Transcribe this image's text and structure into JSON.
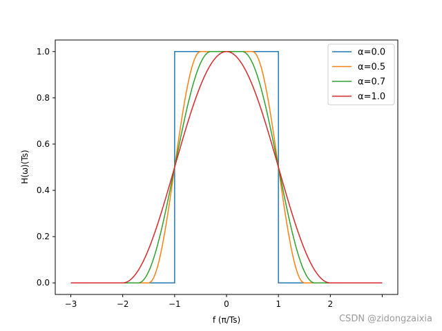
{
  "chart_data": {
    "type": "line",
    "title": "",
    "xlabel": "f (π/Ts)",
    "ylabel": "H(ω)(Ts)",
    "xlim": [
      -3.3,
      3.3
    ],
    "ylim": [
      -0.05,
      1.05
    ],
    "x_ticks": [
      -3,
      -2,
      -1,
      0,
      1,
      2,
      3
    ],
    "x_tick_labels": [
      "−3",
      "−2",
      "−1",
      "0",
      "1",
      "2",
      ""
    ],
    "y_ticks": [
      0.0,
      0.2,
      0.4,
      0.6,
      0.8,
      1.0
    ],
    "y_tick_labels": [
      "0.0",
      "0.2",
      "0.4",
      "0.6",
      "0.8",
      "1.0"
    ],
    "grid": false,
    "legend_position": "top-right",
    "x_range": [
      -3,
      3
    ],
    "series": [
      {
        "name": "α=0.0",
        "alpha": 0.0,
        "color": "#1f77b4"
      },
      {
        "name": "α=0.5",
        "alpha": 0.5,
        "color": "#ff7f0e"
      },
      {
        "name": "α=0.7",
        "alpha": 0.7,
        "color": "#2ca02c"
      },
      {
        "name": "α=1.0",
        "alpha": 1.0,
        "color": "#d62728"
      }
    ]
  },
  "watermark": "CSDN @zidongzaixia"
}
